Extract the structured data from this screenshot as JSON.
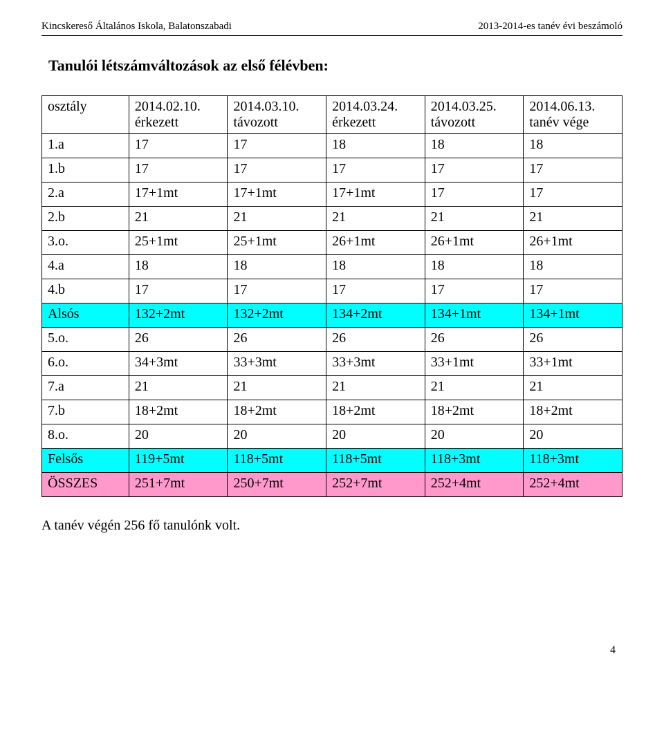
{
  "header": {
    "left": "Kincskereső Általános Iskola, Balatonszabadi",
    "right": "2013-2014-es tanév évi beszámoló"
  },
  "title": "Tanulói létszámváltozások az első félévben:",
  "table": {
    "columns": [
      "osztály",
      "2014.02.10.\nérkezett",
      "2014.03.10.\ntávozott",
      "2014.03.24.\nérkezett",
      "2014.03.25.\ntávozott",
      "2014.06.13.\ntanév vége"
    ],
    "rows": [
      {
        "cells": [
          "1.a",
          "17",
          "17",
          "18",
          "18",
          "18"
        ],
        "highlight": ""
      },
      {
        "cells": [
          "1.b",
          "17",
          "17",
          "17",
          "17",
          "17"
        ],
        "highlight": ""
      },
      {
        "cells": [
          "2.a",
          "17+1mt",
          "17+1mt",
          "17+1mt",
          "17",
          "17"
        ],
        "highlight": ""
      },
      {
        "cells": [
          "2.b",
          "21",
          "21",
          "21",
          "21",
          "21"
        ],
        "highlight": ""
      },
      {
        "cells": [
          "3.o.",
          "25+1mt",
          "25+1mt",
          "26+1mt",
          "26+1mt",
          "26+1mt"
        ],
        "highlight": ""
      },
      {
        "cells": [
          "4.a",
          "18",
          "18",
          "18",
          "18",
          "18"
        ],
        "highlight": ""
      },
      {
        "cells": [
          "4.b",
          "17",
          "17",
          "17",
          "17",
          "17"
        ],
        "highlight": ""
      },
      {
        "cells": [
          "Alsós",
          "132+2mt",
          "132+2mt",
          "134+2mt",
          "134+1mt",
          "134+1mt"
        ],
        "highlight": "cyan"
      },
      {
        "cells": [
          "5.o.",
          "26",
          "26",
          "26",
          "26",
          "26"
        ],
        "highlight": ""
      },
      {
        "cells": [
          "6.o.",
          "34+3mt",
          "33+3mt",
          "33+3mt",
          "33+1mt",
          "33+1mt"
        ],
        "highlight": ""
      },
      {
        "cells": [
          "7.a",
          "21",
          "21",
          "21",
          "21",
          "21"
        ],
        "highlight": ""
      },
      {
        "cells": [
          "7.b",
          "18+2mt",
          "18+2mt",
          "18+2mt",
          "18+2mt",
          "18+2mt"
        ],
        "highlight": ""
      },
      {
        "cells": [
          "8.o.",
          "20",
          "20",
          "20",
          "20",
          "20"
        ],
        "highlight": ""
      },
      {
        "cells": [
          "Felsős",
          "119+5mt",
          "118+5mt",
          "118+5mt",
          "118+3mt",
          "118+3mt"
        ],
        "highlight": "cyan"
      },
      {
        "cells": [
          "ÖSSZES",
          "251+7mt",
          "250+7mt",
          "252+7mt",
          "252+4mt",
          "252+4mt"
        ],
        "highlight": "pink"
      }
    ]
  },
  "footnote": "A tanév végén 256 fő tanulónk volt.",
  "page_number": "4",
  "colors": {
    "cyan": "#00ffff",
    "pink": "#ff99cc",
    "background": "#ffffff",
    "text": "#000000",
    "border": "#000000"
  }
}
